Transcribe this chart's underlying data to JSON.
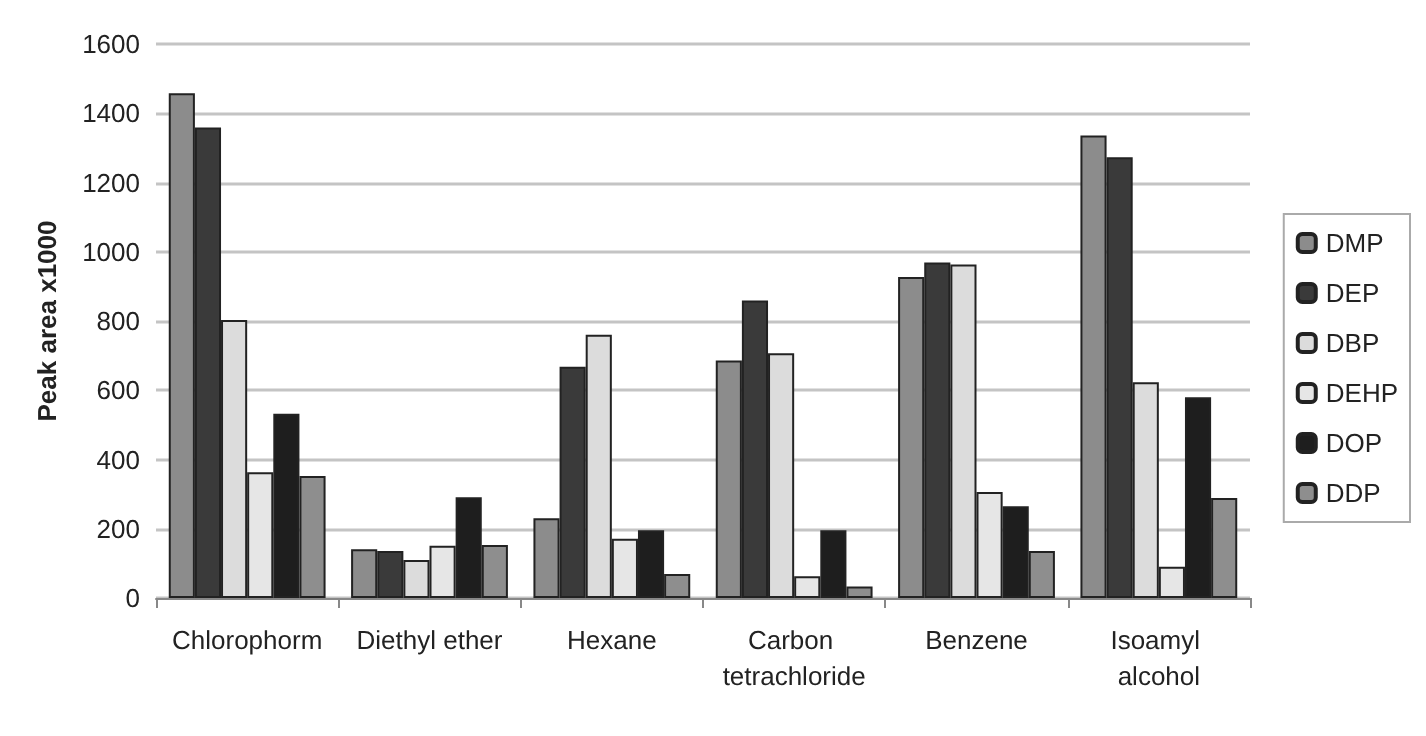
{
  "chart_data": {
    "type": "bar",
    "ylabel": "Peak area x1000",
    "categories": [
      "Chlorophorm",
      "Diethyl ether",
      "Hexane",
      "Carbon tetrachloride",
      "Benzene",
      "Isoamyl alcohol"
    ],
    "series": [
      {
        "name": "DMP",
        "color": "#8c8c8c",
        "values": [
          1458,
          141,
          230,
          686,
          927,
          1336
        ]
      },
      {
        "name": "DEP",
        "color": "#3a3a3a",
        "values": [
          1359,
          136,
          668,
          859,
          969,
          1273
        ]
      },
      {
        "name": "DBP",
        "color": "#dcdcdc",
        "values": [
          803,
          110,
          760,
          707,
          963,
          623
        ]
      },
      {
        "name": "DEHP",
        "color": "#e6e6e6",
        "values": [
          363,
          151,
          171,
          63,
          306,
          90
        ]
      },
      {
        "name": "DOP",
        "color": "#1e1e1e",
        "values": [
          532,
          291,
          196,
          196,
          265,
          580
        ]
      },
      {
        "name": "DDP",
        "color": "#8e8e8e",
        "values": [
          352,
          153,
          69,
          33,
          136,
          289
        ]
      }
    ],
    "ylim": [
      0,
      1600
    ],
    "yticks": [
      0,
      200,
      400,
      600,
      800,
      1000,
      1200,
      1400,
      1600
    ],
    "grid": "y",
    "legend": "right"
  }
}
